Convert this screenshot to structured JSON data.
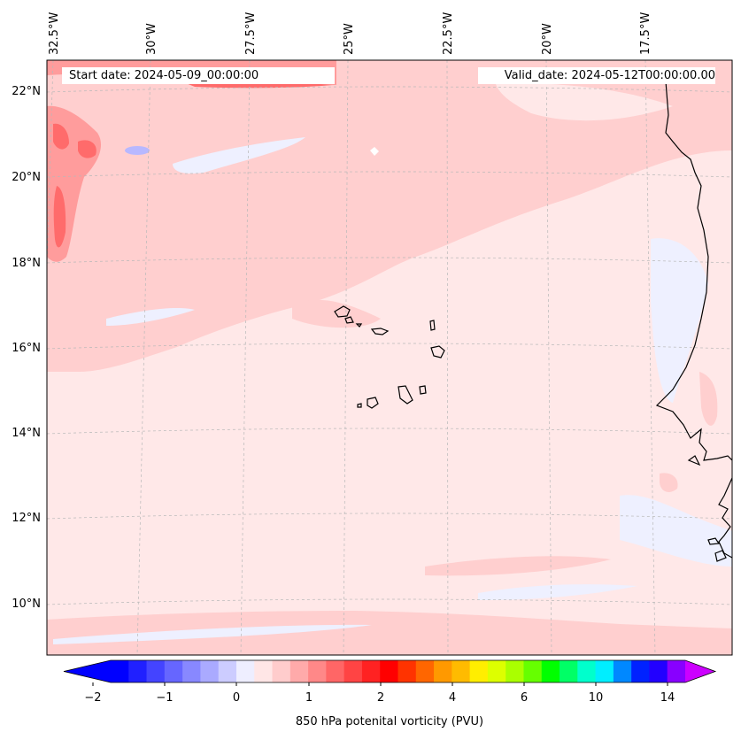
{
  "map": {
    "start_label": "Start date: 2024-05-09_00:00:00",
    "valid_label": "Valid_date: 2024-05-12T00:00:00.00",
    "lon_labels": [
      "32.5°W",
      "30°W",
      "27.5°W",
      "25°W",
      "22.5°W",
      "20°W",
      "17.5°W"
    ],
    "lat_labels": [
      "22°N",
      "20°N",
      "18°N",
      "16°N",
      "14°N",
      "12°N",
      "10°N"
    ],
    "gridlines": true
  },
  "colorbar": {
    "title": "850 hPa potenital vorticity (PVU)",
    "tick_labels": [
      "−2",
      "−1",
      "0",
      "1",
      "2",
      "4",
      "6",
      "10",
      "14"
    ],
    "colors": [
      "#0000ff",
      "#2020ff",
      "#4444ff",
      "#6666ff",
      "#8888ff",
      "#aaaaff",
      "#ccccff",
      "#eeeeff",
      "#ffe6e6",
      "#ffcccc",
      "#ffaaaa",
      "#ff8888",
      "#ff6666",
      "#ff4444",
      "#ff2222",
      "#ff0000",
      "#ff3300",
      "#ff6600",
      "#ff9900",
      "#ffbb00",
      "#ffee00",
      "#ddff00",
      "#aaff00",
      "#66ff00",
      "#00ff00",
      "#00ff66",
      "#00ffcc",
      "#00eeff",
      "#0088ff",
      "#0022ff",
      "#2200ff",
      "#8800ff"
    ],
    "under_color": "#0000ff",
    "over_color": "#cc00ff"
  },
  "field_colors": {
    "background": "#ffe8e8",
    "light_red": "#ffcfcf",
    "mid_red": "#ff9c9c",
    "strong_red": "#ff6b6b",
    "light_blue": "#eef0ff",
    "mid_blue": "#b8b8ff"
  }
}
